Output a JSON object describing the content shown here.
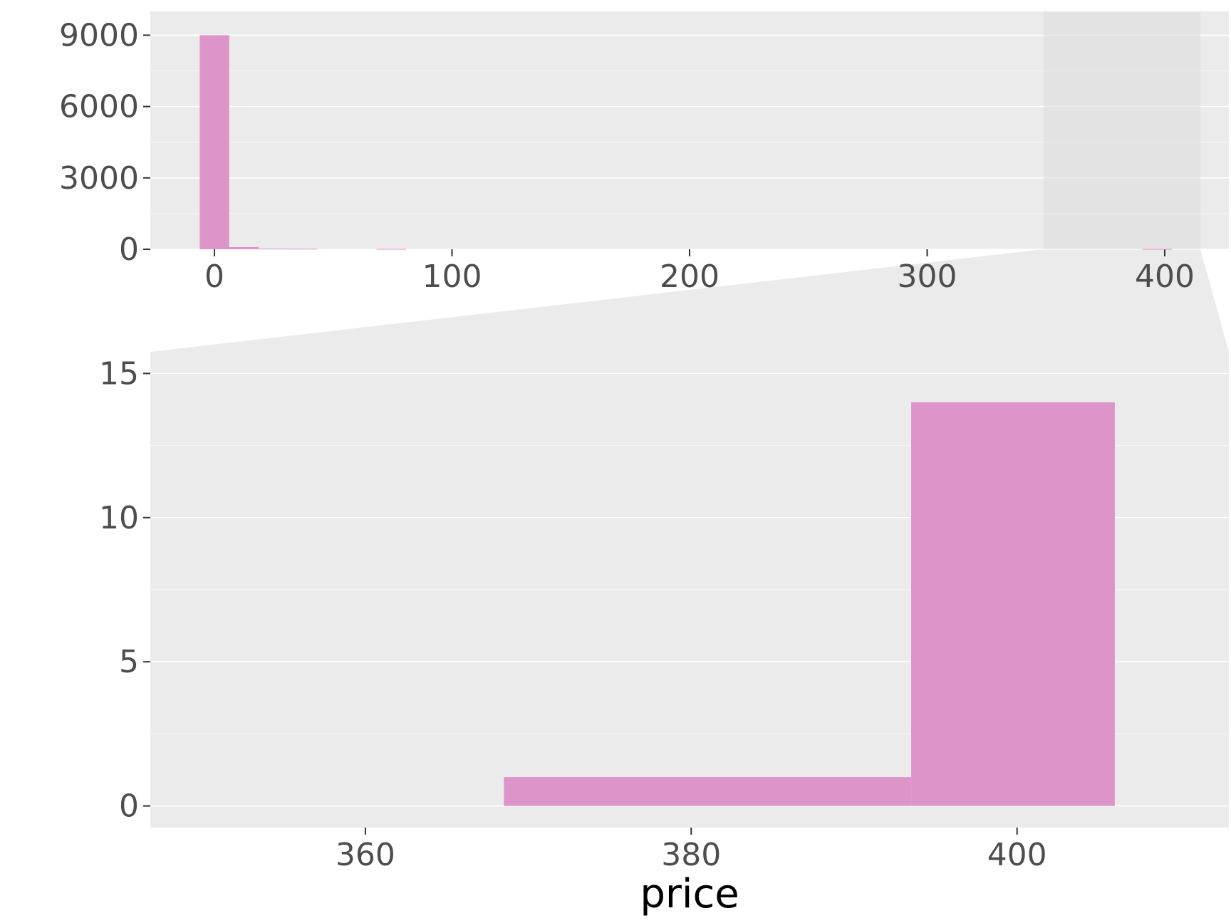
{
  "chart_data": [
    {
      "type": "bar",
      "role": "overview",
      "xlim": [
        -27,
        427
      ],
      "ylim": [
        0,
        10000
      ],
      "y_ticks": [
        0,
        3000,
        6000,
        9000
      ],
      "y_tick_labels": [
        "0",
        "3000",
        "6000",
        "9000"
      ],
      "x_ticks": [
        0,
        100,
        200,
        300,
        400
      ],
      "x_tick_labels": [
        "0",
        "100",
        "200",
        "300",
        "400"
      ],
      "xlabel": "",
      "ylabel": "",
      "bins": [
        {
          "x0": -6.2,
          "x1": 6.2,
          "count": 9000
        },
        {
          "x0": 6.2,
          "x1": 18.6,
          "count": 90
        },
        {
          "x0": 18.6,
          "x1": 31.0,
          "count": 25
        },
        {
          "x0": 31.0,
          "x1": 43.4,
          "count": 20
        },
        {
          "x0": 68.2,
          "x1": 80.6,
          "count": 15
        },
        {
          "x0": 390.6,
          "x1": 403.0,
          "count": 14
        }
      ],
      "zoom_region": [
        349,
        415
      ],
      "grid": true
    },
    {
      "type": "bar",
      "role": "zoom",
      "xlim": [
        346.8,
        413
      ],
      "ylim": [
        -0.75,
        15.75
      ],
      "y_ticks": [
        0,
        5,
        10,
        15
      ],
      "y_tick_labels": [
        "0",
        "5",
        "10",
        "15"
      ],
      "x_ticks": [
        360,
        380,
        400
      ],
      "x_tick_labels": [
        "360",
        "380",
        "400"
      ],
      "xlabel": "price",
      "ylabel": "",
      "bins": [
        {
          "x0": 368.5,
          "x1": 393.5,
          "count": 1
        },
        {
          "x0": 393.5,
          "x1": 406,
          "count": 14
        }
      ],
      "grid": true
    }
  ],
  "colors": {
    "bar": "#dd95c9",
    "panel": "#ebebeb",
    "zoom_highlight": "#dedede",
    "grid_minor": "#f5f5f5",
    "grid_major": "#ffffff",
    "tick_text": "#4d4d4d",
    "tick_mark": "#333333"
  }
}
